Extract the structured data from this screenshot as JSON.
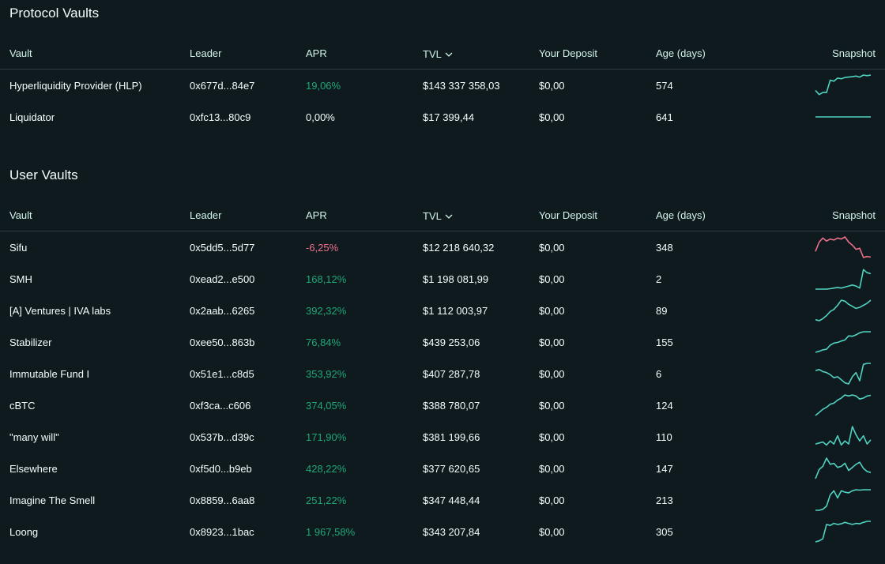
{
  "protocol": {
    "title": "Protocol Vaults",
    "columns": [
      "Vault",
      "Leader",
      "APR",
      "TVL",
      "Your Deposit",
      "Age (days)",
      "Snapshot"
    ],
    "rows": [
      {
        "vault": "Hyperliquidity Provider (HLP)",
        "leader": "0x677d...84e7",
        "apr": "19,06%",
        "apr_sign": "pos",
        "tvl": "$143 337 358,03",
        "deposit": "$0,00",
        "age": "574",
        "spark_color": "#50d2c1",
        "spark": [
          0.25,
          0.05,
          0.15,
          0.15,
          0.75,
          0.7,
          0.85,
          0.82,
          0.88,
          0.9,
          0.92,
          0.95,
          0.9,
          1.0,
          0.97,
          1.0
        ]
      },
      {
        "vault": "Liquidator",
        "leader": "0xfc13...80c9",
        "apr": "0,00%",
        "apr_sign": "zero",
        "tvl": "$17 399,44",
        "deposit": "$0,00",
        "age": "641",
        "spark_color": "#50d2c1",
        "spark": [
          0.5,
          0.5
        ]
      }
    ]
  },
  "user": {
    "title": "User Vaults",
    "columns": [
      "Vault",
      "Leader",
      "APR",
      "TVL",
      "Your Deposit",
      "Age (days)",
      "Snapshot"
    ],
    "rows": [
      {
        "vault": "Sifu",
        "leader": "0x5dd5...5d77",
        "apr": "-6,25%",
        "apr_sign": "neg",
        "tvl": "$12 218 640,32",
        "deposit": "$0,00",
        "age": "348",
        "spark_color": "#ed7088",
        "spark": [
          0.3,
          0.75,
          0.95,
          0.8,
          0.9,
          0.85,
          0.95,
          0.9,
          1.0,
          0.75,
          0.6,
          0.4,
          0.45,
          0.0,
          0.05,
          0.02
        ]
      },
      {
        "vault": "SMH",
        "leader": "0xead2...e500",
        "apr": "168,12%",
        "apr_sign": "pos",
        "tvl": "$1 198 081,99",
        "deposit": "$0,00",
        "age": "2",
        "spark_color": "#50d2c1",
        "spark": [
          0.0,
          0.0,
          0.0,
          0.0,
          0.02,
          0.05,
          0.08,
          0.05,
          0.1,
          0.15,
          0.2,
          0.15,
          0.05,
          0.95,
          0.8,
          0.75
        ]
      },
      {
        "vault": "[A] Ventures | IVA labs",
        "leader": "0x2aab...6265",
        "apr": "392,32%",
        "apr_sign": "pos",
        "tvl": "$1 112 003,97",
        "deposit": "$0,00",
        "age": "89",
        "spark_color": "#50d2c1",
        "spark": [
          0.05,
          0.0,
          0.1,
          0.25,
          0.45,
          0.55,
          0.75,
          1.0,
          0.95,
          0.8,
          0.7,
          0.6,
          0.65,
          0.75,
          0.85,
          1.0
        ]
      },
      {
        "vault": "Stabilizer",
        "leader": "0xee50...863b",
        "apr": "76,84%",
        "apr_sign": "pos",
        "tvl": "$439 253,06",
        "deposit": "$0,00",
        "age": "155",
        "spark_color": "#50d2c1",
        "spark": [
          0.0,
          0.05,
          0.12,
          0.15,
          0.35,
          0.45,
          0.48,
          0.55,
          0.6,
          0.8,
          0.78,
          0.85,
          0.95,
          1.0,
          1.0,
          1.0
        ]
      },
      {
        "vault": "Immutable Fund I",
        "leader": "0x51e1...c8d5",
        "apr": "353,92%",
        "apr_sign": "pos",
        "tvl": "$407 287,78",
        "deposit": "$0,00",
        "age": "6",
        "spark_color": "#50d2c1",
        "spark": [
          0.65,
          0.7,
          0.6,
          0.55,
          0.45,
          0.3,
          0.35,
          0.2,
          0.05,
          0.0,
          0.35,
          0.55,
          0.15,
          0.95,
          1.0,
          1.0
        ]
      },
      {
        "vault": "cBTC",
        "leader": "0xf3ca...c606",
        "apr": "374,05%",
        "apr_sign": "pos",
        "tvl": "$388 780,07",
        "deposit": "$0,00",
        "age": "124",
        "spark_color": "#50d2c1",
        "spark": [
          0.0,
          0.15,
          0.3,
          0.4,
          0.55,
          0.6,
          0.75,
          0.85,
          1.0,
          0.95,
          1.0,
          0.95,
          0.8,
          0.85,
          0.95,
          0.98
        ]
      },
      {
        "vault": "\"many will\"",
        "leader": "0x537b...d39c",
        "apr": "171,90%",
        "apr_sign": "pos",
        "tvl": "$381 199,66",
        "deposit": "$0,00",
        "age": "110",
        "spark_color": "#50d2c1",
        "spark": [
          0.15,
          0.2,
          0.25,
          0.1,
          0.3,
          0.15,
          0.55,
          0.1,
          0.3,
          0.15,
          1.0,
          0.6,
          0.3,
          0.55,
          0.15,
          0.35
        ]
      },
      {
        "vault": "Elsewhere",
        "leader": "0xf5d0...b9eb",
        "apr": "428,22%",
        "apr_sign": "pos",
        "tvl": "$377 620,65",
        "deposit": "$0,00",
        "age": "147",
        "spark_color": "#50d2c1",
        "spark": [
          0.0,
          0.45,
          0.6,
          1.0,
          0.7,
          0.75,
          0.55,
          0.6,
          0.75,
          0.4,
          0.55,
          0.7,
          0.8,
          0.5,
          0.35,
          0.3
        ]
      },
      {
        "vault": "Imagine The Smell",
        "leader": "0x8859...6aa8",
        "apr": "251,22%",
        "apr_sign": "pos",
        "tvl": "$347 448,44",
        "deposit": "$0,00",
        "age": "213",
        "spark_color": "#50d2c1",
        "spark": [
          0.0,
          0.0,
          0.05,
          0.2,
          0.75,
          0.95,
          0.6,
          0.95,
          0.88,
          0.85,
          0.95,
          1.0,
          0.98,
          1.0,
          1.0,
          1.0
        ]
      },
      {
        "vault": "Loong",
        "leader": "0x8923...1bac",
        "apr": "1 967,58%",
        "apr_sign": "pos",
        "tvl": "$343 207,84",
        "deposit": "$0,00",
        "age": "305",
        "spark_color": "#50d2c1",
        "spark": [
          0.0,
          0.05,
          0.15,
          0.85,
          0.8,
          0.9,
          0.85,
          0.88,
          0.95,
          0.9,
          0.85,
          0.9,
          0.88,
          0.95,
          1.0,
          1.0
        ]
      }
    ]
  },
  "icons": {
    "sort": "chevron-down-icon"
  }
}
